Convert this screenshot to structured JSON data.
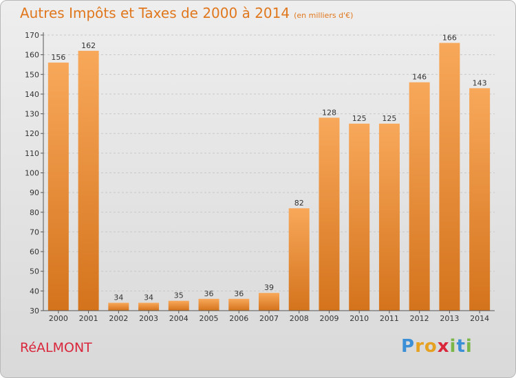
{
  "title": "Autres Impôts et Taxes de 2000 à 2014",
  "subtitle": "(en milliers d'€)",
  "town": "RéALMONT",
  "logo": {
    "letters": [
      "P",
      "r",
      "o",
      "x",
      "i",
      "t",
      "i"
    ],
    "colors": [
      "#3a8fd6",
      "#e5a11f",
      "#e5a11f",
      "#d9263b",
      "#7ab648",
      "#3a8fd6",
      "#7ab648"
    ]
  },
  "colors": {
    "bar_light": "#f8a85a",
    "bar_dark": "#d4731c",
    "title": "#e0771c",
    "town": "#d9263b"
  },
  "chart_data": {
    "type": "bar",
    "title": "Autres Impôts et Taxes de 2000 à 2014",
    "subtitle": "(en milliers d'€)",
    "xlabel": "",
    "ylabel": "",
    "categories": [
      "2000",
      "2001",
      "2002",
      "2003",
      "2004",
      "2005",
      "2006",
      "2007",
      "2008",
      "2009",
      "2010",
      "2011",
      "2012",
      "2013",
      "2014"
    ],
    "values": [
      156,
      162,
      34,
      34,
      35,
      36,
      36,
      39,
      82,
      128,
      125,
      125,
      146,
      166,
      143
    ],
    "ylim": [
      30,
      170
    ],
    "yticks": [
      30,
      40,
      50,
      60,
      70,
      80,
      90,
      100,
      110,
      120,
      130,
      140,
      150,
      160,
      170
    ],
    "grid": true,
    "legend": "none"
  }
}
